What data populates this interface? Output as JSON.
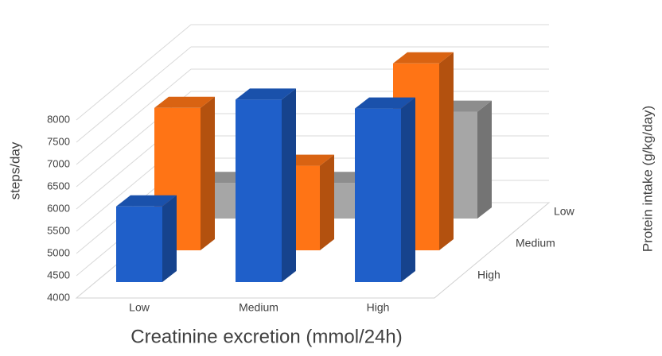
{
  "chart_data": {
    "type": "bar3d",
    "x_label": "Creatinine excretion (mmol/24h)",
    "y_label": "steps/day",
    "z_label": "Protein intake (g/kg/day)",
    "categories": [
      "Low",
      "Medium",
      "High"
    ],
    "series": [
      {
        "name": "High",
        "color": "#1f5fc9",
        "values": [
          5700,
          8100,
          7900
        ]
      },
      {
        "name": "Medium",
        "color": "#ff7415",
        "values": [
          7200,
          5900,
          8200
        ]
      },
      {
        "name": "Low",
        "color": "#a6a6a6",
        "values": [
          4800,
          4800,
          6400
        ]
      }
    ],
    "ylim": [
      4000,
      9000
    ],
    "yticks": [
      4000,
      4500,
      5000,
      5500,
      6000,
      6500,
      7000,
      7500,
      8000
    ],
    "grid": true
  }
}
